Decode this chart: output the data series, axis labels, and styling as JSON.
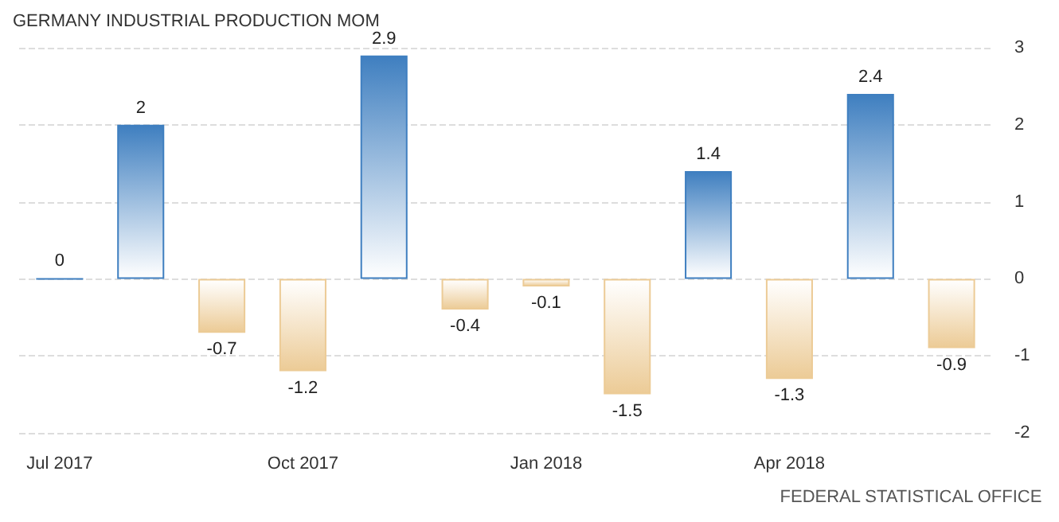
{
  "chart_data": {
    "type": "bar",
    "title": "GERMANY INDUSTRIAL PRODUCTION MOM",
    "categories": [
      "Jul 2017",
      null,
      null,
      "Oct 2017",
      null,
      null,
      "Jan 2018",
      null,
      null,
      "Apr 2018",
      null,
      null
    ],
    "values": [
      0,
      2,
      -0.7,
      -1.2,
      2.9,
      -0.4,
      -0.1,
      -1.5,
      1.4,
      -1.3,
      2.4,
      -0.9
    ],
    "colors": [
      "#3f7fc0",
      "#3f7fc0",
      "#eccb96",
      "#eccb96",
      "#3f7fc0",
      "#eccb96",
      "#eccb96",
      "#eccb96",
      "#3f7fc0",
      "#eccb96",
      "#3f7fc0",
      "#eccb96"
    ],
    "ylim": [
      -2,
      3
    ],
    "yticks": [
      -2,
      -1,
      0,
      1,
      2,
      3
    ],
    "grid": "y",
    "data_labels": true,
    "annotations": [
      "FEDERAL STATISTICAL OFFICE"
    ]
  }
}
